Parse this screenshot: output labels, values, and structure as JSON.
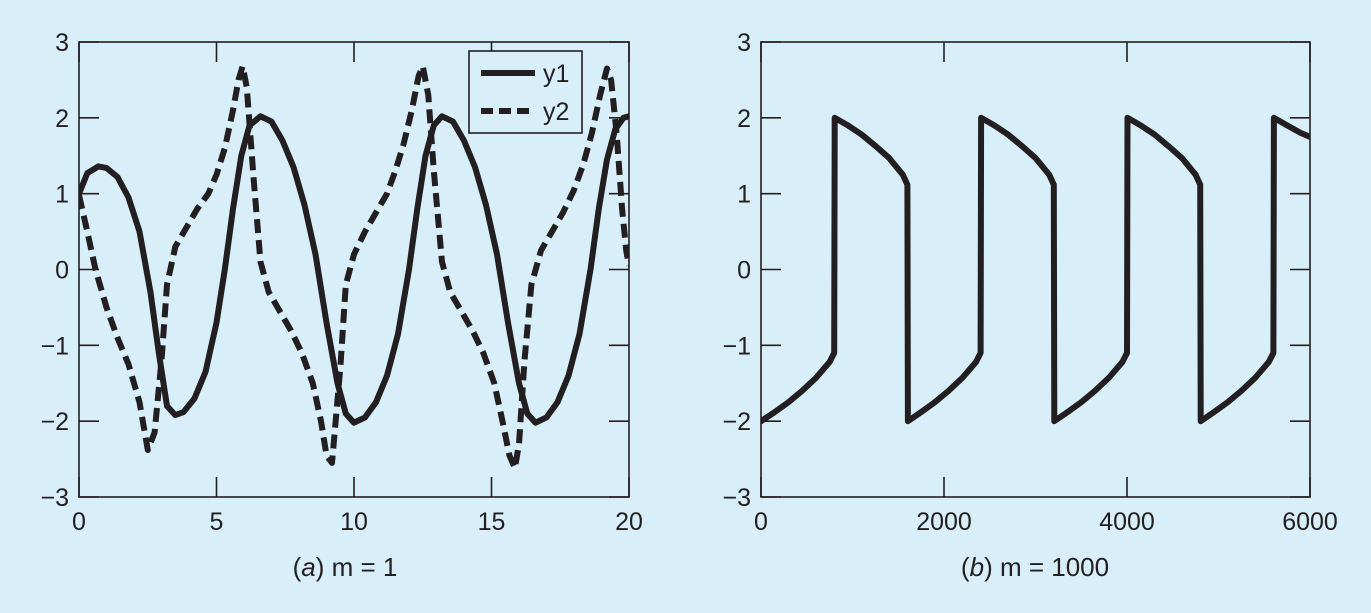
{
  "chart_data": [
    {
      "type": "line",
      "caption": {
        "letter": "a",
        "text": "m = 1"
      },
      "xlim": [
        0,
        20
      ],
      "ylim": [
        -3,
        3
      ],
      "xticks": [
        0,
        5,
        10,
        15,
        20
      ],
      "yticks": [
        3,
        2,
        1,
        0,
        -1,
        -2,
        -3
      ],
      "ytick_labels": [
        "3",
        "2",
        "1",
        "0",
        "−1",
        "−2",
        "−3"
      ],
      "legend": {
        "position": "top-right"
      },
      "series": [
        {
          "name": "y1",
          "style": "solid",
          "points": [
            [
              0,
              1.0
            ],
            [
              0.3,
              1.27
            ],
            [
              0.7,
              1.36
            ],
            [
              1.0,
              1.34
            ],
            [
              1.4,
              1.22
            ],
            [
              1.8,
              0.95
            ],
            [
              2.2,
              0.5
            ],
            [
              2.6,
              -0.3
            ],
            [
              2.9,
              -1.1
            ],
            [
              3.2,
              -1.8
            ],
            [
              3.5,
              -1.92
            ],
            [
              3.8,
              -1.88
            ],
            [
              4.2,
              -1.7
            ],
            [
              4.6,
              -1.35
            ],
            [
              5.0,
              -0.7
            ],
            [
              5.3,
              0.0
            ],
            [
              5.6,
              0.8
            ],
            [
              5.9,
              1.5
            ],
            [
              6.2,
              1.9
            ],
            [
              6.6,
              2.02
            ],
            [
              7.0,
              1.95
            ],
            [
              7.4,
              1.7
            ],
            [
              7.8,
              1.35
            ],
            [
              8.2,
              0.85
            ],
            [
              8.6,
              0.2
            ],
            [
              9.0,
              -0.7
            ],
            [
              9.4,
              -1.5
            ],
            [
              9.7,
              -1.9
            ],
            [
              10.0,
              -2.02
            ],
            [
              10.4,
              -1.95
            ],
            [
              10.8,
              -1.75
            ],
            [
              11.2,
              -1.4
            ],
            [
              11.6,
              -0.85
            ],
            [
              12.0,
              0.0
            ],
            [
              12.3,
              0.8
            ],
            [
              12.6,
              1.5
            ],
            [
              12.9,
              1.9
            ],
            [
              13.2,
              2.02
            ],
            [
              13.6,
              1.95
            ],
            [
              14.0,
              1.7
            ],
            [
              14.4,
              1.35
            ],
            [
              14.8,
              0.85
            ],
            [
              15.2,
              0.2
            ],
            [
              15.6,
              -0.7
            ],
            [
              16.0,
              -1.5
            ],
            [
              16.3,
              -1.9
            ],
            [
              16.6,
              -2.02
            ],
            [
              17.0,
              -1.95
            ],
            [
              17.4,
              -1.75
            ],
            [
              17.8,
              -1.4
            ],
            [
              18.2,
              -0.85
            ],
            [
              18.6,
              0.0
            ],
            [
              18.9,
              0.8
            ],
            [
              19.2,
              1.45
            ],
            [
              19.5,
              1.85
            ],
            [
              19.8,
              2.0
            ],
            [
              20,
              2.02
            ]
          ]
        },
        {
          "name": "y2",
          "style": "dashed",
          "points": [
            [
              0,
              0.98
            ],
            [
              0.3,
              0.5
            ],
            [
              0.6,
              0.0
            ],
            [
              1.0,
              -0.5
            ],
            [
              1.4,
              -0.9
            ],
            [
              1.8,
              -1.25
            ],
            [
              2.2,
              -1.75
            ],
            [
              2.5,
              -2.38
            ],
            [
              2.75,
              -2.15
            ],
            [
              3.0,
              -1.2
            ],
            [
              3.2,
              -0.2
            ],
            [
              3.5,
              0.3
            ],
            [
              3.9,
              0.55
            ],
            [
              4.3,
              0.8
            ],
            [
              4.7,
              1.0
            ],
            [
              5.0,
              1.25
            ],
            [
              5.3,
              1.6
            ],
            [
              5.6,
              2.1
            ],
            [
              5.8,
              2.5
            ],
            [
              5.95,
              2.68
            ],
            [
              6.1,
              2.4
            ],
            [
              6.35,
              1.2
            ],
            [
              6.6,
              0.1
            ],
            [
              6.9,
              -0.3
            ],
            [
              7.3,
              -0.55
            ],
            [
              7.7,
              -0.8
            ],
            [
              8.1,
              -1.1
            ],
            [
              8.5,
              -1.5
            ],
            [
              8.8,
              -2.0
            ],
            [
              9.0,
              -2.45
            ],
            [
              9.2,
              -2.55
            ],
            [
              9.5,
              -1.3
            ],
            [
              9.7,
              -0.2
            ],
            [
              10.0,
              0.2
            ],
            [
              10.4,
              0.5
            ],
            [
              10.8,
              0.75
            ],
            [
              11.2,
              1.0
            ],
            [
              11.5,
              1.3
            ],
            [
              11.8,
              1.65
            ],
            [
              12.1,
              2.1
            ],
            [
              12.35,
              2.55
            ],
            [
              12.5,
              2.68
            ],
            [
              12.7,
              2.3
            ],
            [
              12.9,
              1.3
            ],
            [
              13.2,
              0.1
            ],
            [
              13.5,
              -0.3
            ],
            [
              13.9,
              -0.55
            ],
            [
              14.3,
              -0.8
            ],
            [
              14.7,
              -1.1
            ],
            [
              15.1,
              -1.5
            ],
            [
              15.4,
              -2.0
            ],
            [
              15.65,
              -2.45
            ],
            [
              15.85,
              -2.62
            ],
            [
              16.0,
              -2.3
            ],
            [
              16.2,
              -1.2
            ],
            [
              16.45,
              -0.2
            ],
            [
              16.8,
              0.25
            ],
            [
              17.2,
              0.5
            ],
            [
              17.6,
              0.75
            ],
            [
              18.0,
              1.05
            ],
            [
              18.35,
              1.4
            ],
            [
              18.65,
              1.8
            ],
            [
              18.95,
              2.3
            ],
            [
              19.2,
              2.65
            ],
            [
              19.35,
              2.5
            ],
            [
              19.55,
              1.8
            ],
            [
              19.75,
              0.8
            ],
            [
              19.9,
              0.25
            ],
            [
              20.0,
              0.05
            ]
          ]
        }
      ]
    },
    {
      "type": "line",
      "caption": {
        "letter": "b",
        "text": "m = 1000"
      },
      "xlim": [
        0,
        6000
      ],
      "ylim": [
        -3,
        3
      ],
      "xticks": [
        0,
        2000,
        4000,
        6000
      ],
      "yticks": [
        3,
        2,
        1,
        0,
        -1,
        -2,
        -3
      ],
      "ytick_labels": [
        "3",
        "2",
        "1",
        "0",
        "−1",
        "−2",
        "−3"
      ],
      "series": [
        {
          "style": "solid",
          "points": [
            [
              0,
              -2.0
            ],
            [
              150,
              -1.88
            ],
            [
              300,
              -1.75
            ],
            [
              450,
              -1.6
            ],
            [
              600,
              -1.43
            ],
            [
              750,
              -1.22
            ],
            [
              800,
              -1.1
            ],
            [
              805,
              2.0
            ],
            [
              950,
              1.9
            ],
            [
              1100,
              1.78
            ],
            [
              1250,
              1.63
            ],
            [
              1400,
              1.47
            ],
            [
              1550,
              1.25
            ],
            [
              1600,
              1.12
            ],
            [
              1605,
              -2.0
            ],
            [
              1750,
              -1.88
            ],
            [
              1900,
              -1.75
            ],
            [
              2050,
              -1.6
            ],
            [
              2200,
              -1.43
            ],
            [
              2350,
              -1.22
            ],
            [
              2400,
              -1.1
            ],
            [
              2405,
              2.0
            ],
            [
              2550,
              1.9
            ],
            [
              2700,
              1.78
            ],
            [
              2850,
              1.63
            ],
            [
              3000,
              1.47
            ],
            [
              3150,
              1.25
            ],
            [
              3200,
              1.12
            ],
            [
              3205,
              -2.0
            ],
            [
              3350,
              -1.88
            ],
            [
              3500,
              -1.75
            ],
            [
              3650,
              -1.6
            ],
            [
              3800,
              -1.43
            ],
            [
              3950,
              -1.22
            ],
            [
              4000,
              -1.1
            ],
            [
              4005,
              2.0
            ],
            [
              4150,
              1.9
            ],
            [
              4300,
              1.78
            ],
            [
              4450,
              1.63
            ],
            [
              4600,
              1.47
            ],
            [
              4750,
              1.25
            ],
            [
              4800,
              1.12
            ],
            [
              4805,
              -2.0
            ],
            [
              4950,
              -1.88
            ],
            [
              5100,
              -1.75
            ],
            [
              5250,
              -1.6
            ],
            [
              5400,
              -1.43
            ],
            [
              5550,
              -1.22
            ],
            [
              5600,
              -1.1
            ],
            [
              5605,
              2.0
            ],
            [
              5750,
              1.9
            ],
            [
              5900,
              1.8
            ],
            [
              6000,
              1.75
            ]
          ]
        }
      ]
    }
  ]
}
